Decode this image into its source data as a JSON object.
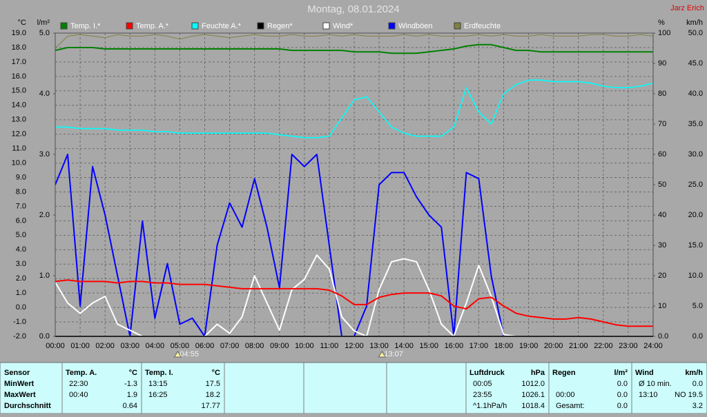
{
  "chart_data": {
    "type": "line",
    "title": "Montag, 08.01.2024",
    "author": "Jarz Erich",
    "grid": true,
    "xlim": [
      0,
      24
    ],
    "xticks": [
      {
        "value": 0,
        "label": "00:00"
      },
      {
        "value": 1,
        "label": "01:00"
      },
      {
        "value": 2,
        "label": "02:00"
      },
      {
        "value": 3,
        "label": "03:00"
      },
      {
        "value": 4,
        "label": "04:00"
      },
      {
        "value": 5,
        "label": "05:00"
      },
      {
        "value": 6,
        "label": "06:00"
      },
      {
        "value": 7,
        "label": "07:00"
      },
      {
        "value": 8,
        "label": "08:00"
      },
      {
        "value": 9,
        "label": "09:00"
      },
      {
        "value": 10,
        "label": "10:00"
      },
      {
        "value": 11,
        "label": "11:00"
      },
      {
        "value": 12,
        "label": "12:00"
      },
      {
        "value": 13,
        "label": "13:00"
      },
      {
        "value": 14,
        "label": "14:00"
      },
      {
        "value": 15,
        "label": "15:00"
      },
      {
        "value": 16,
        "label": "16:00"
      },
      {
        "value": 17,
        "label": "17:00"
      },
      {
        "value": 18,
        "label": "18:00"
      },
      {
        "value": 19,
        "label": "19:00"
      },
      {
        "value": 20,
        "label": "20:00"
      },
      {
        "value": 21,
        "label": "21:00"
      },
      {
        "value": 22,
        "label": "22:00"
      },
      {
        "value": 23,
        "label": "23:00"
      },
      {
        "value": 24,
        "label": "24:00"
      }
    ],
    "axes": [
      {
        "label": "°C",
        "lim": [
          -2,
          19
        ],
        "ticks": [
          {
            "value": -2,
            "label": "-2.0"
          },
          {
            "value": -1,
            "label": "-1.0"
          },
          {
            "value": 0,
            "label": "0.0"
          },
          {
            "value": 1,
            "label": "1.0"
          },
          {
            "value": 2,
            "label": "2.0"
          },
          {
            "value": 3,
            "label": "3.0"
          },
          {
            "value": 4,
            "label": "4.0"
          },
          {
            "value": 5,
            "label": "5.0"
          },
          {
            "value": 6,
            "label": "6.0"
          },
          {
            "value": 7,
            "label": "7.0"
          },
          {
            "value": 8,
            "label": "8.0"
          },
          {
            "value": 9,
            "label": "9.0"
          },
          {
            "value": 10,
            "label": "10.0"
          },
          {
            "value": 11,
            "label": "11.0"
          },
          {
            "value": 12,
            "label": "12.0"
          },
          {
            "value": 13,
            "label": "13.0"
          },
          {
            "value": 14,
            "label": "14.0"
          },
          {
            "value": 15,
            "label": "15.0"
          },
          {
            "value": 16,
            "label": "16.0"
          },
          {
            "value": 17,
            "label": "17.0"
          },
          {
            "value": 18,
            "label": "18.0"
          },
          {
            "value": 19,
            "label": "19.0"
          }
        ]
      },
      {
        "label": "l/m²",
        "lim": [
          0,
          5
        ],
        "ticks": [
          {
            "value": 0,
            "label": "0.0"
          },
          {
            "value": 1,
            "label": "1.0"
          },
          {
            "value": 2,
            "label": "2.0"
          },
          {
            "value": 3,
            "label": "3.0"
          },
          {
            "value": 4,
            "label": "4.0"
          },
          {
            "value": 5,
            "label": "5.0"
          }
        ]
      },
      {
        "label": "%",
        "lim": [
          0,
          100
        ],
        "ticks": [
          {
            "value": 0,
            "label": "0.0"
          },
          10,
          20,
          30,
          40,
          50,
          60,
          70,
          80,
          90,
          100
        ]
      },
      {
        "label": "km/h",
        "lim": [
          0,
          50
        ],
        "ticks": [
          {
            "value": 0,
            "label": "0.0"
          },
          {
            "value": 5,
            "label": "5.0"
          },
          {
            "value": 10,
            "label": "10.0"
          },
          {
            "value": 15,
            "label": "15.0"
          },
          {
            "value": 20,
            "label": "20.0"
          },
          {
            "value": 25,
            "label": "25.0"
          },
          {
            "value": 30,
            "label": "30.0"
          },
          {
            "value": 35,
            "label": "35.0"
          },
          {
            "value": 40,
            "label": "40.0"
          },
          {
            "value": 45,
            "label": "45.0"
          },
          {
            "value": 50,
            "label": "50.0"
          }
        ]
      }
    ],
    "x": [
      0,
      0.5,
      1,
      1.5,
      2,
      2.5,
      3,
      3.5,
      4,
      4.5,
      5,
      5.5,
      6,
      6.5,
      7,
      7.5,
      8,
      8.5,
      9,
      9.5,
      10,
      10.5,
      11,
      11.5,
      12,
      12.5,
      13,
      13.5,
      14,
      14.5,
      15,
      15.5,
      16,
      16.5,
      17,
      17.5,
      18,
      18.5,
      19,
      19.5,
      20,
      20.5,
      21,
      21.5,
      22,
      22.5,
      23,
      23.5,
      24
    ],
    "series": [
      {
        "name": "Temp. I.*",
        "color": "#008000",
        "axis": 0,
        "values": [
          17.8,
          18.0,
          18.0,
          18.0,
          17.9,
          17.9,
          17.9,
          17.9,
          17.9,
          17.9,
          17.9,
          17.9,
          17.9,
          17.9,
          17.9,
          17.9,
          17.9,
          17.9,
          17.9,
          17.8,
          17.8,
          17.8,
          17.8,
          17.8,
          17.7,
          17.7,
          17.7,
          17.6,
          17.6,
          17.6,
          17.7,
          17.8,
          17.9,
          18.1,
          18.2,
          18.2,
          18.0,
          17.8,
          17.8,
          17.7,
          17.7,
          17.7,
          17.7,
          17.7,
          17.7,
          17.7,
          17.7,
          17.7,
          17.7
        ]
      },
      {
        "name": "Temp. A.*",
        "color": "#ff0000",
        "axis": 0,
        "values": [
          1.8,
          1.9,
          1.8,
          1.8,
          1.8,
          1.7,
          1.8,
          1.8,
          1.7,
          1.7,
          1.6,
          1.6,
          1.6,
          1.5,
          1.4,
          1.3,
          1.3,
          1.3,
          1.3,
          1.3,
          1.3,
          1.3,
          1.2,
          0.8,
          0.2,
          0.2,
          0.7,
          0.9,
          1.0,
          1.0,
          1.0,
          0.8,
          0.1,
          -0.1,
          0.6,
          0.7,
          0.1,
          -0.4,
          -0.6,
          -0.7,
          -0.8,
          -0.8,
          -0.7,
          -0.8,
          -1.0,
          -1.2,
          -1.3,
          -1.3,
          -1.3
        ]
      },
      {
        "name": "Feuchte A.*",
        "color": "#00ffff",
        "axis": 2,
        "values": [
          69,
          69,
          68.5,
          68.5,
          68.5,
          68,
          68,
          68,
          67.5,
          67.5,
          67,
          67,
          67,
          67,
          67,
          67,
          67,
          67,
          66.5,
          66,
          65.5,
          65.5,
          66,
          72,
          78,
          79,
          74,
          69,
          67,
          66,
          66,
          66,
          69,
          82,
          74,
          70,
          80,
          83,
          84.5,
          84.5,
          84,
          84,
          84,
          83.5,
          82.5,
          82,
          82,
          82.5,
          83.5
        ]
      },
      {
        "name": "Regen*",
        "color": "#000000",
        "axis": 1,
        "values": [
          0,
          0,
          0,
          0,
          0,
          0,
          0,
          0,
          0,
          0,
          0,
          0,
          0,
          0,
          0,
          0,
          0,
          0,
          0,
          0,
          0,
          0,
          0,
          0,
          0,
          0,
          0,
          0,
          0,
          0,
          0,
          0,
          0,
          0,
          0,
          0,
          0,
          0,
          0,
          0,
          0,
          0,
          0,
          0,
          0,
          0,
          0,
          0,
          0
        ]
      },
      {
        "name": "Wind*",
        "color": "#ffffff",
        "axis": 3,
        "values": [
          8.9,
          5.5,
          3.8,
          5.5,
          6.6,
          2.0,
          1.0,
          0,
          0,
          0,
          0,
          0,
          0,
          2.0,
          0.5,
          3.2,
          10.0,
          5.5,
          1.0,
          7.7,
          9.4,
          13.4,
          11.1,
          3.2,
          0.9,
          0,
          7.7,
          12.3,
          12.8,
          12.3,
          7.7,
          2.0,
          0,
          5.5,
          11.7,
          6.6,
          0.3,
          0,
          0,
          0,
          0,
          0,
          0,
          0,
          0,
          0,
          0,
          0,
          0
        ]
      },
      {
        "name": "Windböen",
        "color": "#0000ff",
        "axis": 3,
        "values": [
          25,
          30,
          5,
          28,
          20,
          10,
          0,
          19,
          3,
          12,
          2,
          3,
          0,
          15,
          22,
          18,
          26,
          18,
          8,
          30,
          28,
          30,
          15,
          0,
          0,
          5,
          25,
          27,
          27,
          23,
          20,
          18,
          0,
          27,
          26,
          10,
          0,
          0,
          0,
          0,
          0,
          0,
          0,
          0,
          0,
          0,
          0,
          0,
          0
        ]
      },
      {
        "name": "Erdfeuchte",
        "color": "#808040",
        "axis": 2,
        "values": [
          95,
          99,
          99.5,
          99,
          98.5,
          99.5,
          99,
          99,
          99.5,
          99,
          98,
          99,
          99.5,
          99,
          98.5,
          99,
          99.5,
          99,
          99,
          99.5,
          99,
          99,
          99.5,
          99,
          99.5,
          99,
          99,
          99,
          99.5,
          99,
          99.5,
          99,
          99,
          99,
          99.5,
          99,
          99.5,
          99,
          99,
          99.5,
          99,
          99,
          99,
          99.5,
          99.5,
          99,
          99,
          99.5,
          99
        ]
      }
    ],
    "annotations": [
      "04:55",
      "13:07"
    ]
  },
  "table": {
    "row_labels": [
      "Sensor",
      "MinWert",
      "MaxWert",
      "Durchschnitt"
    ],
    "groups": [
      {
        "title": "Temp. A.",
        "unit": "°C",
        "cells": [
          [
            "22:30",
            "-1.3"
          ],
          [
            "00:40",
            "1.9"
          ],
          [
            null,
            "0.64"
          ]
        ]
      },
      {
        "title": "Temp. I.",
        "unit": "°C",
        "cells": [
          [
            "13:15",
            "17.5"
          ],
          [
            "16:25",
            "18.2"
          ],
          [
            null,
            "17.77"
          ]
        ]
      },
      {
        "title": "Luftdruck",
        "unit": "hPa",
        "cells": [
          [
            "00:05",
            "1012.0"
          ],
          [
            "23:55",
            "1026.1"
          ],
          [
            "^1.1hPa/h",
            "1018.4"
          ]
        ]
      },
      {
        "title": "Regen",
        "unit": "l/m²",
        "cells": [
          [
            null,
            "0.0"
          ],
          [
            "00:00",
            "0.0"
          ],
          [
            "Gesamt:",
            "0.0"
          ]
        ]
      },
      {
        "title": "Wind",
        "unit": "km/h",
        "cells": [
          [
            "Ø 10 min.",
            "0.0"
          ],
          [
            "13:10",
            "NO 19.5"
          ],
          [
            null,
            "3.2"
          ]
        ]
      }
    ]
  }
}
